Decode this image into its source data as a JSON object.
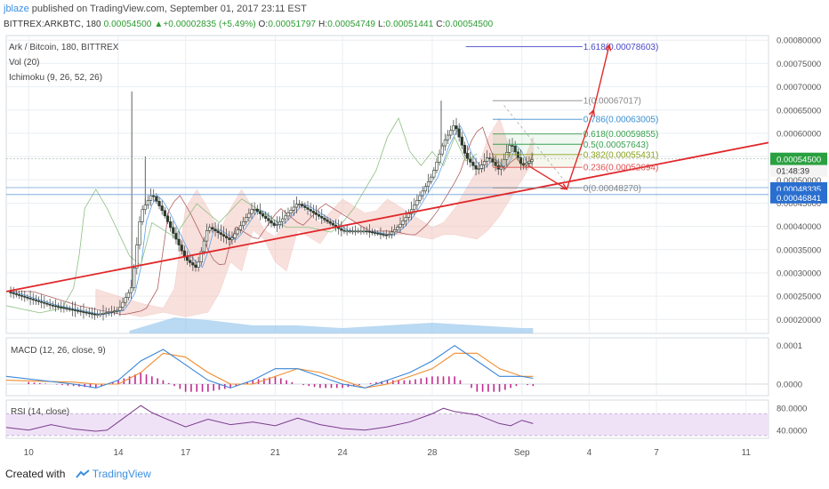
{
  "header": {
    "user": "jblaze",
    "published": " published on TradingView.com, September 01, 2017 23:11 EST",
    "symbol": "BITTREX:ARKBTC, 180",
    "last": "0.00054500",
    "change_arrow": "▲",
    "change": "+0.00002835 (+5.49%)",
    "o_label": "O:",
    "o": "0.00051797",
    "h_label": "H:",
    "h": "0.00054749",
    "l_label": "L:",
    "l": "0.00051441",
    "c_label": "C:",
    "c": "0.00054500"
  },
  "legends": {
    "main_title": "Ark / Bitcoin, 180, BITTREX",
    "vol": "Vol (20)",
    "ichimoku": "Ichimoku (9, 26, 52, 26)",
    "macd": "MACD (12, 26, close, 9)",
    "rsi": "RSI (14, close)"
  },
  "footer": {
    "created_with": "Created with",
    "brand": "TradingView"
  },
  "colors": {
    "grid": "#e9eef2",
    "candle_up": "#2c3a2c",
    "trendline": "#e0272a",
    "macd": "#3a86d8",
    "signal": "#f08c2e",
    "hist": "#c12a8f",
    "rsi": "#7a3b8a",
    "rsi_band": "#efe2f7",
    "fib_1618": "#4a4ac8",
    "fib_1": "#888888",
    "fib_0786": "#3b8fd0",
    "fib_0618": "#3aa050",
    "fib_05": "#3aa050",
    "fib_0382": "#8aa020",
    "fib_0236": "#e05050",
    "fib_0": "#888888",
    "price_badge": "#2aa040",
    "level_badge": "#2a6fd0"
  },
  "chart_data": {
    "type": "candlestick",
    "title": "Ark / Bitcoin, 180, BITTREX",
    "x_ticks": [
      "10",
      "14",
      "17",
      "21",
      "24",
      "28",
      "Sep",
      "4",
      "7",
      "11"
    ],
    "x_tick_days": [
      10,
      14,
      17,
      21,
      24,
      28,
      32,
      35,
      38,
      42
    ],
    "x_range_days": [
      9,
      43
    ],
    "price_axis": {
      "ticks": [
        "0.00080000",
        "0.00075000",
        "0.00070000",
        "0.00065000",
        "0.00060000",
        "0.00055000",
        "0.00050000",
        "0.00045000",
        "0.00040000",
        "0.00035000",
        "0.00030000",
        "0.00025000",
        "0.00020000"
      ],
      "ylim": [
        0.00017,
        0.00081
      ],
      "current_label": "0.00054500",
      "current_value": 0.000545,
      "timer_label": "01:48:39",
      "level_labels": [
        "0.00048335",
        "0.00046841"
      ],
      "level_values": [
        0.00048335,
        0.00046841
      ]
    },
    "price_path_days": [
      9,
      11,
      13,
      14,
      14.6,
      15,
      15.5,
      16,
      17,
      17.5,
      18,
      19,
      20,
      21,
      22,
      23,
      24,
      25,
      26,
      26.5,
      27,
      27.5,
      28,
      28.5,
      29,
      29.5,
      30,
      30.5,
      31,
      31.5,
      32,
      32.5
    ],
    "price_path_values": [
      0.00026,
      0.00023,
      0.00021,
      0.00022,
      0.00027,
      0.00043,
      0.00047,
      0.00043,
      0.00033,
      0.00031,
      0.0004,
      0.00037,
      0.00044,
      0.0004,
      0.00045,
      0.00042,
      0.00039,
      0.00039,
      0.00038,
      0.0004,
      0.00043,
      0.00047,
      0.00051,
      0.00058,
      0.00062,
      0.00055,
      0.00052,
      0.00055,
      0.00052,
      0.00058,
      0.00053,
      0.000545
    ],
    "volume_profile_days": [
      14.5,
      16.5,
      18,
      20,
      22,
      24,
      26,
      28,
      30,
      32,
      32.5
    ],
    "volume_profile_levels": [
      1,
      6,
      5,
      3,
      3,
      2,
      3,
      4,
      3,
      2,
      2
    ],
    "fibonacci": [
      {
        "ratio": "1.618",
        "value": 0.00078603,
        "label": "1.618(0.00078603)"
      },
      {
        "ratio": "1",
        "value": 0.00067017,
        "label": "1(0.00067017)"
      },
      {
        "ratio": "0.786",
        "value": 0.00063005,
        "label": "0.786(0.00063005)"
      },
      {
        "ratio": "0.618",
        "value": 0.00059855,
        "label": "0.618(0.00059855)"
      },
      {
        "ratio": "0.5",
        "value": 0.00057643,
        "label": "0.5(0.00057643)"
      },
      {
        "ratio": "0.382",
        "value": 0.00055431,
        "label": "0.382(0.00055431)"
      },
      {
        "ratio": "0.236",
        "value": 0.00052694,
        "label": "0.236(0.00052694)"
      },
      {
        "ratio": "0",
        "value": 0.0004827,
        "label": "0(0.00048270)"
      }
    ],
    "trendline": {
      "from": [
        9,
        0.00026
      ],
      "to": [
        43,
        0.00058
      ]
    },
    "projection_path": {
      "days": [
        32.3,
        34,
        35.2,
        35.9
      ],
      "values": [
        0.00053,
        0.00048,
        0.00065,
        0.00079
      ]
    },
    "macd": {
      "ticks": [
        "0.0001",
        "0.0000"
      ],
      "ylim": [
        -3e-05,
        0.00012
      ],
      "days": [
        9,
        12,
        13,
        14,
        15,
        16,
        17,
        18,
        19,
        20,
        21,
        22,
        23,
        24,
        25,
        26,
        27,
        28,
        29,
        30,
        31,
        32,
        32.5
      ],
      "macd": [
        2e-05,
        0.0,
        -1e-05,
        1e-05,
        6e-05,
        9e-05,
        5e-05,
        1e-05,
        -1e-05,
        1e-05,
        4e-05,
        4e-05,
        2e-05,
        0.0,
        -1e-05,
        1e-05,
        3e-05,
        6e-05,
        0.0001,
        6e-05,
        2e-05,
        2e-05,
        1.5e-05
      ],
      "signal": [
        1e-05,
        5e-06,
        0.0,
        0.0,
        3e-05,
        8e-05,
        7e-05,
        3e-05,
        0.0,
        0.0,
        2e-05,
        4e-05,
        3e-05,
        1e-05,
        -1e-05,
        0.0,
        2e-05,
        4e-05,
        8e-05,
        8e-05,
        4e-05,
        2e-05,
        2e-05
      ]
    },
    "rsi": {
      "ticks": [
        "80.0000",
        "40.0000"
      ],
      "ylim": [
        25,
        95
      ],
      "band": [
        30,
        70
      ],
      "days": [
        9,
        10,
        11,
        12,
        13,
        13.5,
        14,
        15,
        15.5,
        16,
        17,
        18,
        19,
        20,
        21,
        22,
        23,
        24,
        25,
        26,
        27,
        28,
        28.5,
        29,
        30,
        31,
        31.5,
        32,
        32.5
      ],
      "values": [
        45,
        40,
        50,
        42,
        38,
        40,
        55,
        85,
        72,
        63,
        46,
        60,
        50,
        55,
        48,
        62,
        50,
        43,
        40,
        46,
        55,
        70,
        80,
        74,
        68,
        52,
        48,
        58,
        52
      ]
    }
  }
}
